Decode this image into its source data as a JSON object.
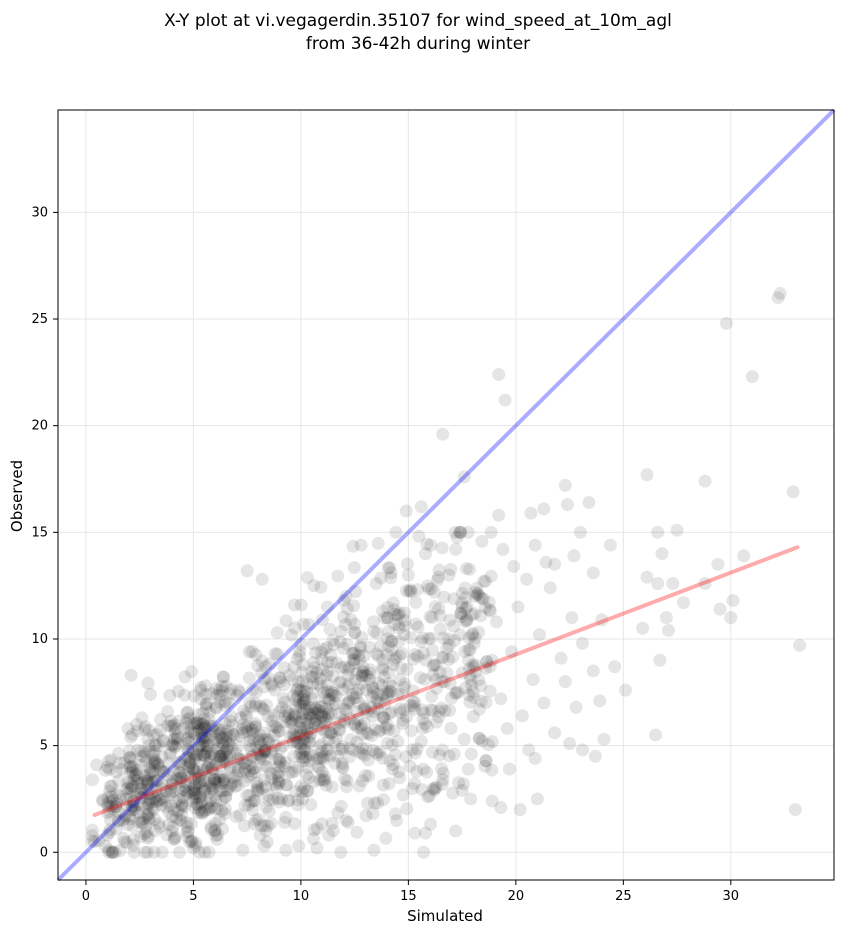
{
  "chart_data": {
    "type": "scatter",
    "title_line1": "X-Y plot at vi.vegagerdin.35107 for wind_speed_at_10m_agl",
    "title_line2": "from 36-42h during winter",
    "xlabel": "Simulated",
    "ylabel": "Observed",
    "xlim": [
      -1.3,
      34.8
    ],
    "ylim": [
      -1.3,
      34.8
    ],
    "xticks": [
      0,
      5,
      10,
      15,
      20,
      25,
      30
    ],
    "yticks": [
      0,
      5,
      10,
      15,
      20,
      25,
      30
    ],
    "grid": true,
    "colors": {
      "points": "#000000",
      "identity_line": "#0000ff",
      "fit_line": "#ff0000"
    },
    "identity_line": {
      "x": [
        -1.3,
        34.8
      ],
      "y": [
        -1.3,
        34.8
      ]
    },
    "fit_line": {
      "x": [
        0.4,
        33.1
      ],
      "y": [
        1.75,
        14.3
      ]
    },
    "points_summary": {
      "approx_count": 1500,
      "description": "dense cloud concentrated at simulated 1-18, observed 0-13"
    },
    "points": [
      [
        32.3,
        26.2
      ],
      [
        32.2,
        26.0
      ],
      [
        29.8,
        24.8
      ],
      [
        31.0,
        22.3
      ],
      [
        19.2,
        22.4
      ],
      [
        19.5,
        21.2
      ],
      [
        16.6,
        19.6
      ],
      [
        17.6,
        17.6
      ],
      [
        26.1,
        17.7
      ],
      [
        28.8,
        17.4
      ],
      [
        32.9,
        16.9
      ],
      [
        22.3,
        17.2
      ],
      [
        15.6,
        16.2
      ],
      [
        14.9,
        16.0
      ],
      [
        20.7,
        15.9
      ],
      [
        21.3,
        16.1
      ],
      [
        23.4,
        16.4
      ],
      [
        19.2,
        15.8
      ],
      [
        22.4,
        16.3
      ],
      [
        23.0,
        15.0
      ],
      [
        26.6,
        15.0
      ],
      [
        27.5,
        15.1
      ],
      [
        24.4,
        14.4
      ],
      [
        12.8,
        14.4
      ],
      [
        19.4,
        14.2
      ],
      [
        20.9,
        14.4
      ],
      [
        26.8,
        14.0
      ],
      [
        30.6,
        13.9
      ],
      [
        29.4,
        13.5
      ],
      [
        23.6,
        13.1
      ],
      [
        22.7,
        13.9
      ],
      [
        21.8,
        13.5
      ],
      [
        17.2,
        14.2
      ],
      [
        15.8,
        14.0
      ],
      [
        7.5,
        13.2
      ],
      [
        8.2,
        12.8
      ],
      [
        26.1,
        12.9
      ],
      [
        26.6,
        12.6
      ],
      [
        27.3,
        12.6
      ],
      [
        28.8,
        12.6
      ],
      [
        27.8,
        11.7
      ],
      [
        27.0,
        11.0
      ],
      [
        29.5,
        11.4
      ],
      [
        30.1,
        11.8
      ],
      [
        30.0,
        11.0
      ],
      [
        33.2,
        9.7
      ],
      [
        26.7,
        9.0
      ],
      [
        25.1,
        7.6
      ],
      [
        24.1,
        5.3
      ],
      [
        26.5,
        5.5
      ],
      [
        23.1,
        4.8
      ],
      [
        23.7,
        4.5
      ],
      [
        33.0,
        2.0
      ],
      [
        21.0,
        2.5
      ],
      [
        20.2,
        2.0
      ],
      [
        19.3,
        2.1
      ],
      [
        17.9,
        2.5
      ],
      [
        16.2,
        2.9
      ],
      [
        15.8,
        0.9
      ],
      [
        15.3,
        0.9
      ],
      [
        17.2,
        1.0
      ],
      [
        13.4,
        0.1
      ],
      [
        9.9,
        0.3
      ],
      [
        9.3,
        0.1
      ],
      [
        2.1,
        8.3
      ],
      [
        3.0,
        7.4
      ],
      [
        2.6,
        6.3
      ],
      [
        1.0,
        4.0
      ],
      [
        0.3,
        3.4
      ],
      [
        0.5,
        4.1
      ],
      [
        1.1,
        3.9
      ],
      [
        1.8,
        4.2
      ],
      [
        1.2,
        3.1
      ],
      [
        2.0,
        2.8
      ],
      [
        1.5,
        1.5
      ],
      [
        2.2,
        1.2
      ],
      [
        1.0,
        0.8
      ],
      [
        0.4,
        0.5
      ],
      [
        0.9,
        0.3
      ],
      [
        1.8,
        0.5
      ],
      [
        3.1,
        2.1
      ],
      [
        2.9,
        3.3
      ],
      [
        3.6,
        3.8
      ],
      [
        3.9,
        2.7
      ],
      [
        4.2,
        1.6
      ],
      [
        4.1,
        0.6
      ],
      [
        4.7,
        1.2
      ],
      [
        4.6,
        3.3
      ],
      [
        5.1,
        4.5
      ],
      [
        5.5,
        5.2
      ],
      [
        5.8,
        3.1
      ],
      [
        5.3,
        2.0
      ],
      [
        6.0,
        1.0
      ],
      [
        6.5,
        2.6
      ],
      [
        6.7,
        4.0
      ],
      [
        6.9,
        5.5
      ],
      [
        7.2,
        6.3
      ],
      [
        7.0,
        3.6
      ],
      [
        7.4,
        2.2
      ],
      [
        7.9,
        1.5
      ],
      [
        8.2,
        3.0
      ],
      [
        8.0,
        4.6
      ],
      [
        7.7,
        5.8
      ],
      [
        8.4,
        6.9
      ],
      [
        8.8,
        5.0
      ],
      [
        8.6,
        3.7
      ],
      [
        9.1,
        2.5
      ],
      [
        9.3,
        4.2
      ],
      [
        9.5,
        6.1
      ],
      [
        9.8,
        7.6
      ],
      [
        10.1,
        8.8
      ],
      [
        10.4,
        5.4
      ],
      [
        10.6,
        3.3
      ],
      [
        10.9,
        6.8
      ],
      [
        11.2,
        9.6
      ],
      [
        11.4,
        7.4
      ],
      [
        11.7,
        4.5
      ],
      [
        12.0,
        6.2
      ],
      [
        12.2,
        8.3
      ],
      [
        12.5,
        10.7
      ],
      [
        12.8,
        5.8
      ],
      [
        13.0,
        3.6
      ],
      [
        13.3,
        7.3
      ],
      [
        13.6,
        9.2
      ],
      [
        13.8,
        11.3
      ],
      [
        14.1,
        6.5
      ],
      [
        14.3,
        4.1
      ],
      [
        14.6,
        8.1
      ],
      [
        14.8,
        10.2
      ],
      [
        15.1,
        12.3
      ],
      [
        15.3,
        7.0
      ],
      [
        15.6,
        5.2
      ],
      [
        15.8,
        9.0
      ],
      [
        16.1,
        11.0
      ],
      [
        16.3,
        6.1
      ],
      [
        16.6,
        3.4
      ],
      [
        16.8,
        8.4
      ],
      [
        17.1,
        10.6
      ],
      [
        17.3,
        7.5
      ],
      [
        17.6,
        5.3
      ],
      [
        17.8,
        9.5
      ],
      [
        18.1,
        12.0
      ],
      [
        18.3,
        6.7
      ],
      [
        18.6,
        4.3
      ],
      [
        18.8,
        8.7
      ],
      [
        19.1,
        10.8
      ],
      [
        19.3,
        7.2
      ],
      [
        19.6,
        5.8
      ],
      [
        19.8,
        9.4
      ],
      [
        20.1,
        11.5
      ],
      [
        20.3,
        6.4
      ],
      [
        20.6,
        4.8
      ],
      [
        20.8,
        8.1
      ],
      [
        21.1,
        10.2
      ],
      [
        21.3,
        7.0
      ],
      [
        21.6,
        12.4
      ],
      [
        21.8,
        5.6
      ],
      [
        22.1,
        9.1
      ],
      [
        22.3,
        8.0
      ],
      [
        22.6,
        11.0
      ],
      [
        22.8,
        6.8
      ],
      [
        23.1,
        9.8
      ],
      [
        23.6,
        8.5
      ],
      [
        24.0,
        10.9
      ],
      [
        3.4,
        5.0
      ],
      [
        2.4,
        5.7
      ],
      [
        3.8,
        6.6
      ],
      [
        4.4,
        4.1
      ],
      [
        4.9,
        6.0
      ],
      [
        5.6,
        6.8
      ],
      [
        6.2,
        7.6
      ],
      [
        6.4,
        8.2
      ],
      [
        7.6,
        9.4
      ],
      [
        8.9,
        10.3
      ],
      [
        9.7,
        11.6
      ],
      [
        10.6,
        12.5
      ],
      [
        11.0,
        10.9
      ],
      [
        12.1,
        12.0
      ],
      [
        13.5,
        12.6
      ],
      [
        14.2,
        13.1
      ],
      [
        15.0,
        13.0
      ],
      [
        16.4,
        12.9
      ],
      [
        17.7,
        13.3
      ],
      [
        18.5,
        12.7
      ],
      [
        19.9,
        13.4
      ],
      [
        20.5,
        12.8
      ],
      [
        21.4,
        13.6
      ],
      [
        2.3,
        3.6
      ],
      [
        3.2,
        2.5
      ],
      [
        4.0,
        1.0
      ],
      [
        5.0,
        0.2
      ],
      [
        6.1,
        0.6
      ],
      [
        7.3,
        0.1
      ],
      [
        8.1,
        0.8
      ],
      [
        11.3,
        0.8
      ],
      [
        12.2,
        1.4
      ],
      [
        13.1,
        2.3
      ],
      [
        14.4,
        1.8
      ],
      [
        15.9,
        2.6
      ],
      [
        17.5,
        2.9
      ],
      [
        18.9,
        2.4
      ],
      [
        19.7,
        3.9
      ],
      [
        20.9,
        4.4
      ],
      [
        22.5,
        5.1
      ],
      [
        23.9,
        7.1
      ],
      [
        24.6,
        8.7
      ],
      [
        25.9,
        10.5
      ],
      [
        27.1,
        10.4
      ],
      [
        6.8,
        4.9
      ],
      [
        7.1,
        4.4
      ],
      [
        7.8,
        5.3
      ],
      [
        8.3,
        4.8
      ],
      [
        6.6,
        5.7
      ],
      [
        7.4,
        3.9
      ],
      [
        8.7,
        5.9
      ],
      [
        9.0,
        6.6
      ],
      [
        12.7,
        7.0
      ],
      [
        13.4,
        6.6
      ],
      [
        14.0,
        7.5
      ],
      [
        13.2,
        8.1
      ],
      [
        12.4,
        7.4
      ],
      [
        11.8,
        6.5
      ],
      [
        10.8,
        7.9
      ],
      [
        9.6,
        8.1
      ],
      [
        16.9,
        9.7
      ],
      [
        17.4,
        10.2
      ],
      [
        16.2,
        8.8
      ],
      [
        17.9,
        8.1
      ]
    ]
  }
}
